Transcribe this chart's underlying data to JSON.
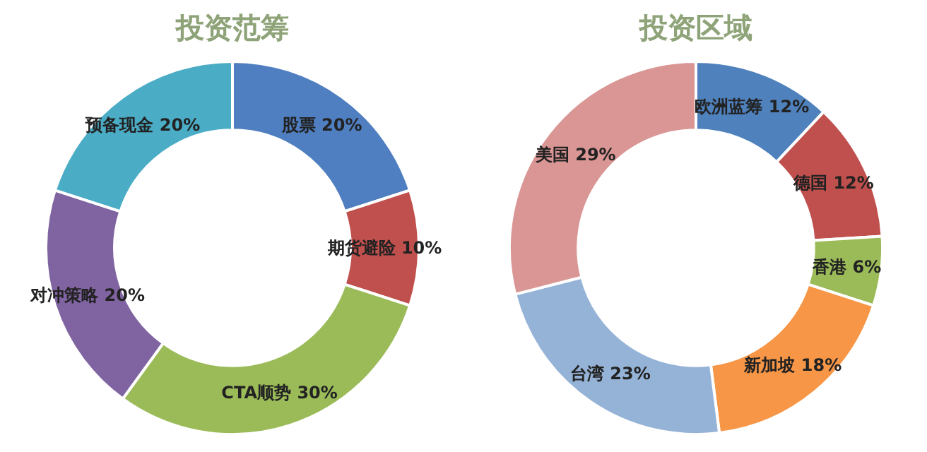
{
  "chart_data": [
    {
      "type": "donut",
      "title": "投资范筹",
      "categories": [
        "股票",
        "期货避险",
        "CTA顺势",
        "对冲策略",
        "预备现金"
      ],
      "values": [
        20,
        10,
        30,
        20,
        20
      ],
      "value_labels": [
        "20%",
        "10%",
        "30%",
        "20%",
        "20%"
      ],
      "colors": [
        "#4f7fc0",
        "#c0504d",
        "#9bbb59",
        "#8064a2",
        "#4bacc6"
      ]
    },
    {
      "type": "donut",
      "title": "投资区域",
      "categories": [
        "欧洲蓝筹",
        "德国",
        "香港",
        "新加坡",
        "台湾",
        "美国"
      ],
      "values": [
        12,
        12,
        6,
        18,
        23,
        29
      ],
      "value_labels": [
        "12%",
        "12%",
        "6%",
        "18%",
        "23%",
        "29%"
      ],
      "colors": [
        "#4f81bd",
        "#c0504d",
        "#9bbb59",
        "#f79646",
        "#95b3d7",
        "#d99694"
      ]
    }
  ]
}
